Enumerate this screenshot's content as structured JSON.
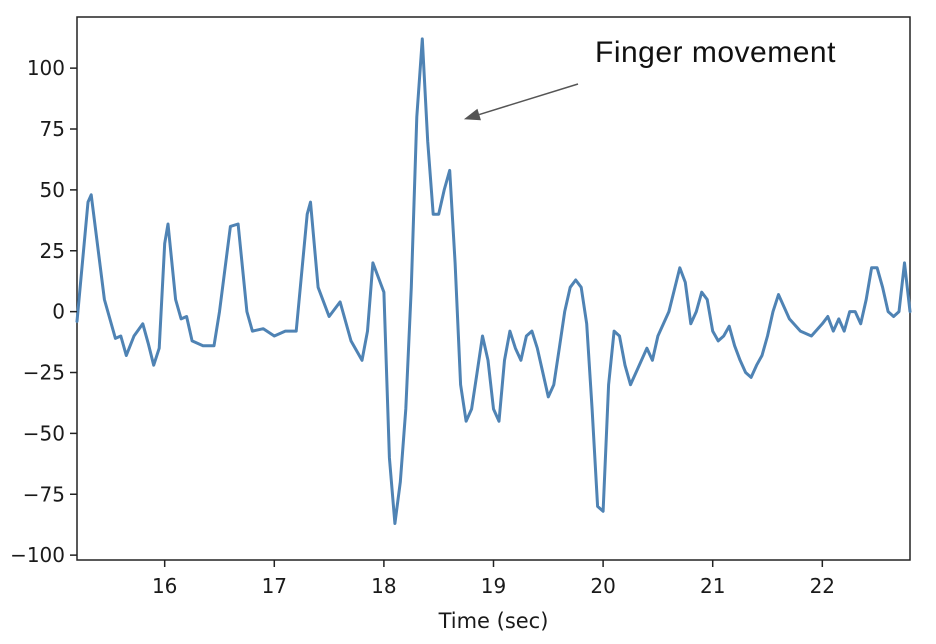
{
  "chart_data": {
    "type": "line",
    "title": "",
    "xlabel": "Time (sec)",
    "ylabel": "",
    "xlim": [
      15.2,
      22.8
    ],
    "ylim": [
      -102,
      121
    ],
    "xticks": [
      16,
      17,
      18,
      19,
      20,
      21,
      22
    ],
    "xtick_labels": [
      "16",
      "17",
      "18",
      "19",
      "20",
      "21",
      "22"
    ],
    "yticks": [
      100,
      75,
      50,
      25,
      0,
      -25,
      -50,
      -75,
      -100
    ],
    "ytick_labels": [
      "100",
      "75",
      "50",
      "25",
      "0",
      "−25",
      "−50",
      "−75",
      "−100"
    ],
    "grid": false,
    "series": [
      {
        "color": "#4f83b4",
        "x": [
          15.2,
          15.3,
          15.33,
          15.45,
          15.55,
          15.6,
          15.65,
          15.72,
          15.8,
          15.85,
          15.9,
          15.95,
          16.0,
          16.03,
          16.1,
          16.15,
          16.2,
          16.25,
          16.35,
          16.45,
          16.5,
          16.6,
          16.67,
          16.75,
          16.8,
          16.9,
          17.0,
          17.1,
          17.2,
          17.3,
          17.33,
          17.4,
          17.5,
          17.6,
          17.7,
          17.8,
          17.85,
          17.9,
          18.0,
          18.05,
          18.1,
          18.15,
          18.2,
          18.25,
          18.3,
          18.35,
          18.4,
          18.45,
          18.5,
          18.55,
          18.6,
          18.65,
          18.7,
          18.75,
          18.8,
          18.85,
          18.9,
          18.95,
          19.0,
          19.05,
          19.1,
          19.15,
          19.2,
          19.25,
          19.3,
          19.35,
          19.4,
          19.45,
          19.5,
          19.55,
          19.6,
          19.65,
          19.7,
          19.75,
          19.8,
          19.85,
          19.9,
          19.95,
          20.0,
          20.05,
          20.1,
          20.15,
          20.2,
          20.25,
          20.3,
          20.35,
          20.4,
          20.45,
          20.5,
          20.6,
          20.7,
          20.75,
          20.8,
          20.85,
          20.9,
          20.95,
          21.0,
          21.05,
          21.1,
          21.15,
          21.2,
          21.25,
          21.3,
          21.35,
          21.4,
          21.45,
          21.5,
          21.55,
          21.6,
          21.7,
          21.8,
          21.9,
          22.0,
          22.05,
          22.1,
          22.15,
          22.2,
          22.25,
          22.3,
          22.35,
          22.4,
          22.45,
          22.5,
          22.55,
          22.6,
          22.65,
          22.7,
          22.75,
          22.8
        ],
        "y": [
          -4,
          45,
          48,
          5,
          -11,
          -10,
          -18,
          -10,
          -5,
          -13,
          -22,
          -15,
          28,
          36,
          5,
          -3,
          -2,
          -12,
          -14,
          -14,
          0,
          35,
          36,
          0,
          -8,
          -7,
          -10,
          -8,
          -8,
          40,
          45,
          10,
          -2,
          4,
          -12,
          -20,
          -8,
          20,
          8,
          -60,
          -87,
          -70,
          -40,
          10,
          80,
          112,
          70,
          40,
          40,
          50,
          58,
          20,
          -30,
          -45,
          -40,
          -25,
          -10,
          -20,
          -40,
          -45,
          -20,
          -8,
          -15,
          -20,
          -10,
          -8,
          -15,
          -25,
          -35,
          -30,
          -15,
          0,
          10,
          13,
          10,
          -5,
          -40,
          -80,
          -82,
          -30,
          -8,
          -10,
          -22,
          -30,
          -25,
          -20,
          -15,
          -20,
          -10,
          0,
          18,
          12,
          -5,
          0,
          8,
          5,
          -8,
          -12,
          -10,
          -6,
          -14,
          -20,
          -25,
          -27,
          -22,
          -18,
          -10,
          0,
          7,
          -3,
          -8,
          -10,
          -5,
          -2,
          -8,
          -3,
          -8,
          0,
          0,
          -5,
          5,
          18,
          18,
          10,
          0,
          -2,
          0,
          20,
          0
        ]
      }
    ],
    "annotations": [
      {
        "text": "Finger movement",
        "arrow_to": {
          "x": 18.73,
          "y": 79
        }
      }
    ]
  }
}
